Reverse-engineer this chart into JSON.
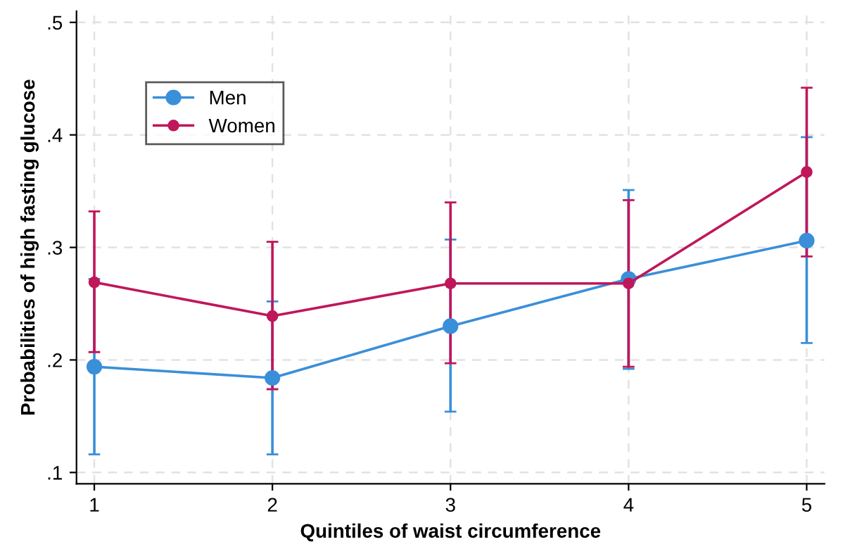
{
  "chart_data": {
    "type": "line",
    "xlabel": "Quintiles of waist circumference",
    "ylabel": "Probabilities of high fasting glucose",
    "x": [
      1,
      2,
      3,
      4,
      5
    ],
    "series": [
      {
        "name": "Men",
        "color": "#3a8fd9",
        "values": [
          0.194,
          0.184,
          0.23,
          0.272,
          0.306
        ],
        "errors": [
          [
            0.116,
            0.272
          ],
          [
            0.116,
            0.252
          ],
          [
            0.154,
            0.307
          ],
          [
            0.192,
            0.351
          ],
          [
            0.215,
            0.398
          ]
        ]
      },
      {
        "name": "Women",
        "color": "#c0175a",
        "values": [
          0.269,
          0.239,
          0.268,
          0.268,
          0.367
        ],
        "errors": [
          [
            0.207,
            0.332
          ],
          [
            0.174,
            0.305
          ],
          [
            0.197,
            0.34
          ],
          [
            0.194,
            0.342
          ],
          [
            0.292,
            0.442
          ]
        ]
      }
    ],
    "xlim": [
      0.9,
      5.1
    ],
    "xticks": [
      1,
      2,
      3,
      4,
      5
    ],
    "ylim": [
      0.09,
      0.51
    ],
    "yticks": [
      {
        "value": 0.1,
        "label": ".1"
      },
      {
        "value": 0.2,
        "label": ".2"
      },
      {
        "value": 0.3,
        "label": ".3"
      },
      {
        "value": 0.4,
        "label": ".4"
      },
      {
        "value": 0.5,
        "label": ".5"
      }
    ],
    "grid": true,
    "legend": "top left",
    "marker": "circle",
    "line_style": "solid"
  }
}
